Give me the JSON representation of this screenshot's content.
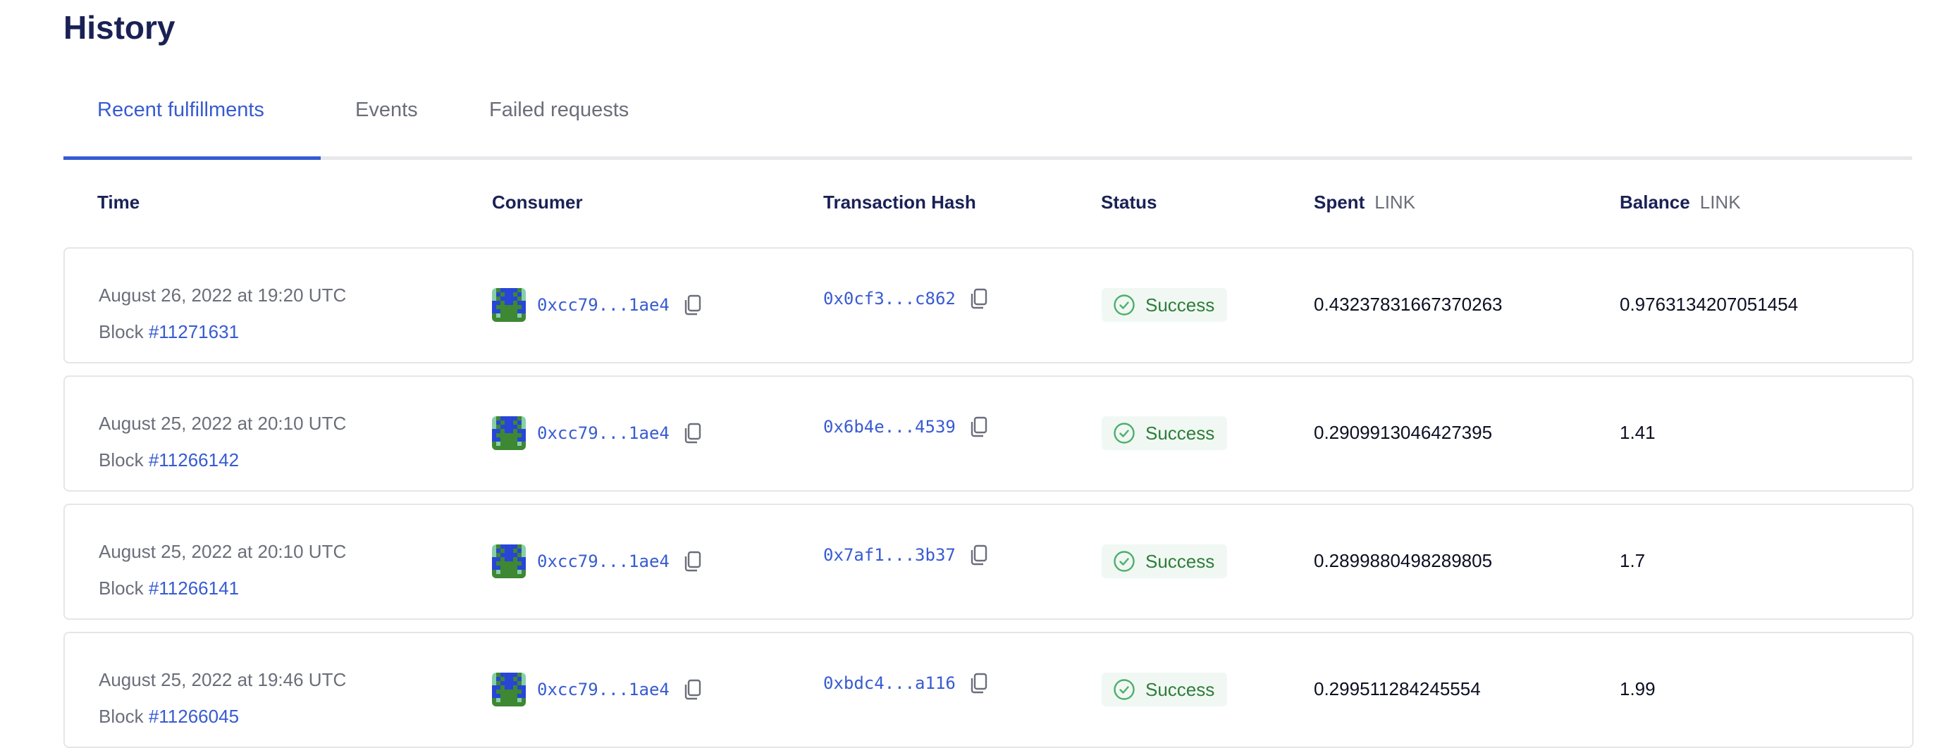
{
  "page": {
    "title": "History"
  },
  "tabs": [
    {
      "label": "Recent fulfillments",
      "active": true
    },
    {
      "label": "Events",
      "active": false
    },
    {
      "label": "Failed requests",
      "active": false
    }
  ],
  "table": {
    "headers": {
      "time": "Time",
      "consumer": "Consumer",
      "hash": "Transaction Hash",
      "status": "Status",
      "spent": "Spent",
      "spent_unit": "LINK",
      "balance": "Balance",
      "balance_unit": "LINK"
    },
    "rows": [
      {
        "time": "August 26, 2022 at 19:20 UTC",
        "block_label": "Block",
        "block": "#11271631",
        "consumer": "0xcc79...1ae4",
        "hash": "0x0cf3...c862",
        "status": "Success",
        "spent": "0.43237831667370263",
        "balance": "0.9763134207051454"
      },
      {
        "time": "August 25, 2022 at 20:10 UTC",
        "block_label": "Block",
        "block": "#11266142",
        "consumer": "0xcc79...1ae4",
        "hash": "0x6b4e...4539",
        "status": "Success",
        "spent": "0.2909913046427395",
        "balance": "1.41"
      },
      {
        "time": "August 25, 2022 at 20:10 UTC",
        "block_label": "Block",
        "block": "#11266141",
        "consumer": "0xcc79...1ae4",
        "hash": "0x7af1...3b37",
        "status": "Success",
        "spent": "0.2899880498289805",
        "balance": "1.7"
      },
      {
        "time": "August 25, 2022 at 19:46 UTC",
        "block_label": "Block",
        "block": "#11266045",
        "consumer": "0xcc79...1ae4",
        "hash": "0xbdc4...a116",
        "status": "Success",
        "spent": "0.299511284245554",
        "balance": "1.99"
      }
    ]
  },
  "colors": {
    "accent": "#375bd2",
    "heading": "#1a2155",
    "success": "#2e7d3a",
    "success_bg": "#f1f8f3"
  },
  "icons": {
    "copy": "copy-icon",
    "status": "check-circle-icon",
    "avatar": "blockie-avatar"
  }
}
